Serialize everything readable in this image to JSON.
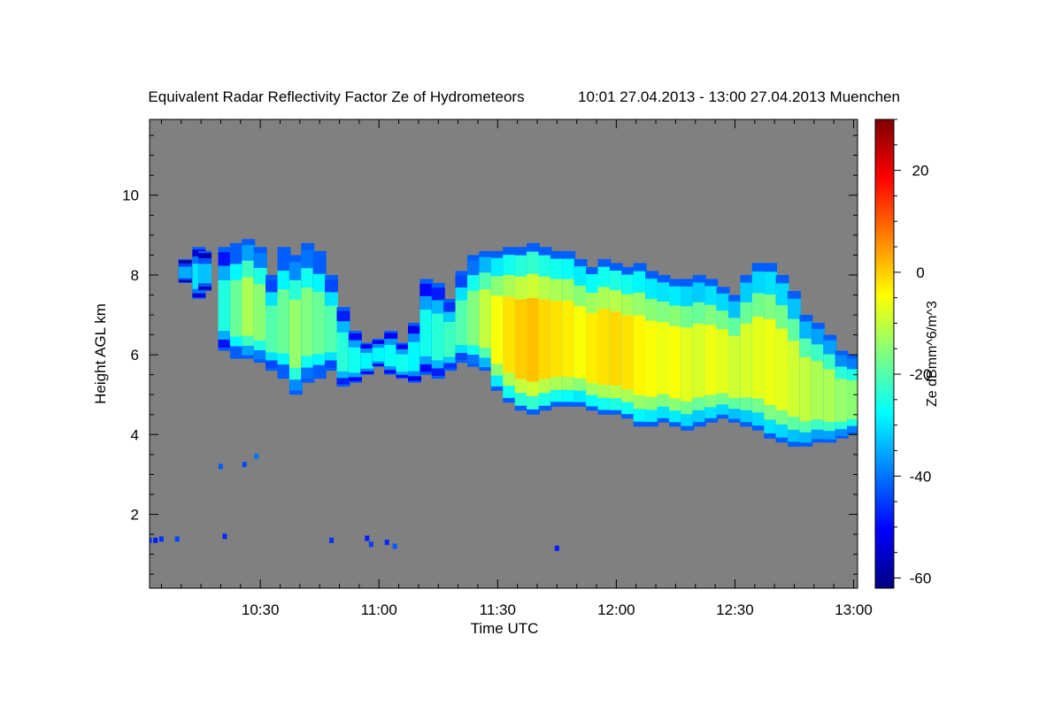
{
  "chart_data": {
    "type": "heatmap",
    "title": "Equivalent Radar Reflectivity Factor Ze of Hydrometeors",
    "subtitle": "10:01 27.04.2013 - 13:00 27.04.2013 Muenchen",
    "xlabel": "Time UTC",
    "ylabel": "Height AGL km",
    "x_ticks": [
      "10:30",
      "11:00",
      "11:30",
      "12:00",
      "12:30",
      "13:00"
    ],
    "x_tick_minutes": [
      30,
      60,
      90,
      120,
      150,
      180
    ],
    "xlim_minutes": [
      2,
      181
    ],
    "y_ticks": [
      2,
      4,
      6,
      8,
      10
    ],
    "ylim": [
      0.15,
      11.9
    ],
    "colorbar": {
      "label": "Ze dBmm^6/m^3",
      "ticks": [
        20,
        0,
        -20,
        -40,
        -60
      ],
      "range": [
        -62,
        30
      ],
      "colormap": "jet"
    },
    "background_color": "#808080",
    "grid": false,
    "legend": "none",
    "cells": [
      {
        "x": 11,
        "top": 8.4,
        "base": 7.8,
        "ze": -35
      },
      {
        "x": 14.5,
        "top": 8.7,
        "base": 7.4,
        "ze": -30
      },
      {
        "x": 16,
        "top": 8.6,
        "base": 7.6,
        "ze": -33
      },
      {
        "x": 21,
        "top": 8.7,
        "base": 6.1,
        "ze": -25
      },
      {
        "x": 24,
        "top": 8.8,
        "base": 5.9,
        "ze": -18
      },
      {
        "x": 27,
        "top": 8.9,
        "base": 5.9,
        "ze": -12
      },
      {
        "x": 30,
        "top": 8.7,
        "base": 5.8,
        "ze": -15
      },
      {
        "x": 33,
        "top": 8.0,
        "base": 5.6,
        "ze": -20
      },
      {
        "x": 36,
        "top": 8.7,
        "base": 5.4,
        "ze": -18
      },
      {
        "x": 39,
        "top": 8.5,
        "base": 5.0,
        "ze": -14
      },
      {
        "x": 42,
        "top": 8.8,
        "base": 5.3,
        "ze": -16
      },
      {
        "x": 45,
        "top": 8.6,
        "base": 5.4,
        "ze": -18
      },
      {
        "x": 48,
        "top": 8.0,
        "base": 5.6,
        "ze": -20
      },
      {
        "x": 51,
        "top": 7.2,
        "base": 5.2,
        "ze": -24
      },
      {
        "x": 54,
        "top": 6.6,
        "base": 5.3,
        "ze": -26
      },
      {
        "x": 57,
        "top": 6.3,
        "base": 5.5,
        "ze": -28
      },
      {
        "x": 60,
        "top": 6.4,
        "base": 5.7,
        "ze": -28
      },
      {
        "x": 63,
        "top": 6.6,
        "base": 5.5,
        "ze": -27
      },
      {
        "x": 66,
        "top": 6.3,
        "base": 5.4,
        "ze": -26
      },
      {
        "x": 69,
        "top": 6.8,
        "base": 5.3,
        "ze": -28
      },
      {
        "x": 72,
        "top": 7.9,
        "base": 5.5,
        "ze": -26
      },
      {
        "x": 75,
        "top": 7.8,
        "base": 5.4,
        "ze": -24
      },
      {
        "x": 78,
        "top": 7.4,
        "base": 5.6,
        "ze": -22
      },
      {
        "x": 81,
        "top": 8.1,
        "base": 5.8,
        "ze": -20
      },
      {
        "x": 84,
        "top": 8.5,
        "base": 5.7,
        "ze": -16
      },
      {
        "x": 87,
        "top": 8.6,
        "base": 5.6,
        "ze": -10
      },
      {
        "x": 90,
        "top": 8.6,
        "base": 5.1,
        "ze": -5
      },
      {
        "x": 93,
        "top": 8.7,
        "base": 4.8,
        "ze": -2
      },
      {
        "x": 96,
        "top": 8.7,
        "base": 4.6,
        "ze": 0
      },
      {
        "x": 99,
        "top": 8.8,
        "base": 4.5,
        "ze": 1
      },
      {
        "x": 102,
        "top": 8.7,
        "base": 4.6,
        "ze": -1
      },
      {
        "x": 105,
        "top": 8.6,
        "base": 4.7,
        "ze": -2
      },
      {
        "x": 108,
        "top": 8.6,
        "base": 4.7,
        "ze": -3
      },
      {
        "x": 111,
        "top": 8.4,
        "base": 4.7,
        "ze": -5
      },
      {
        "x": 114,
        "top": 8.2,
        "base": 4.6,
        "ze": -3
      },
      {
        "x": 117,
        "top": 8.4,
        "base": 4.5,
        "ze": -2
      },
      {
        "x": 120,
        "top": 8.3,
        "base": 4.5,
        "ze": -1
      },
      {
        "x": 123,
        "top": 8.2,
        "base": 4.4,
        "ze": -2
      },
      {
        "x": 126,
        "top": 8.3,
        "base": 4.2,
        "ze": -4
      },
      {
        "x": 129,
        "top": 8.1,
        "base": 4.2,
        "ze": -5
      },
      {
        "x": 132,
        "top": 8.0,
        "base": 4.3,
        "ze": -6
      },
      {
        "x": 135,
        "top": 7.9,
        "base": 4.2,
        "ze": -5
      },
      {
        "x": 138,
        "top": 7.9,
        "base": 4.1,
        "ze": -7
      },
      {
        "x": 141,
        "top": 8.0,
        "base": 4.2,
        "ze": -8
      },
      {
        "x": 144,
        "top": 7.9,
        "base": 4.3,
        "ze": -6
      },
      {
        "x": 147,
        "top": 7.7,
        "base": 4.4,
        "ze": -7
      },
      {
        "x": 150,
        "top": 7.5,
        "base": 4.3,
        "ze": -9
      },
      {
        "x": 153,
        "top": 8.0,
        "base": 4.2,
        "ze": -8
      },
      {
        "x": 156,
        "top": 8.3,
        "base": 4.1,
        "ze": -7
      },
      {
        "x": 159,
        "top": 8.3,
        "base": 3.9,
        "ze": -6
      },
      {
        "x": 162,
        "top": 8.0,
        "base": 3.8,
        "ze": -7
      },
      {
        "x": 165,
        "top": 7.6,
        "base": 3.7,
        "ze": -9
      },
      {
        "x": 168,
        "top": 7.0,
        "base": 3.7,
        "ze": -10
      },
      {
        "x": 171,
        "top": 6.8,
        "base": 3.8,
        "ze": -12
      },
      {
        "x": 174,
        "top": 6.5,
        "base": 3.8,
        "ze": -12
      },
      {
        "x": 177,
        "top": 6.1,
        "base": 3.9,
        "ze": -14
      },
      {
        "x": 180,
        "top": 6.0,
        "base": 4.0,
        "ze": -15
      }
    ],
    "echoes": [
      {
        "x": 2,
        "h": 1.35,
        "ze": -45
      },
      {
        "x": 3.5,
        "h": 1.35,
        "ze": -48
      },
      {
        "x": 5,
        "h": 1.38,
        "ze": -46
      },
      {
        "x": 9,
        "h": 1.38,
        "ze": -44
      },
      {
        "x": 20,
        "h": 3.2,
        "ze": -42
      },
      {
        "x": 21,
        "h": 1.45,
        "ze": -47
      },
      {
        "x": 26,
        "h": 3.25,
        "ze": -44
      },
      {
        "x": 29,
        "h": 3.45,
        "ze": -40
      },
      {
        "x": 48,
        "h": 1.35,
        "ze": -46
      },
      {
        "x": 57,
        "h": 1.4,
        "ze": -48
      },
      {
        "x": 58,
        "h": 1.25,
        "ze": -45
      },
      {
        "x": 62,
        "h": 1.3,
        "ze": -47
      },
      {
        "x": 64,
        "h": 1.2,
        "ze": -42
      },
      {
        "x": 105,
        "h": 1.15,
        "ze": -48
      }
    ]
  }
}
